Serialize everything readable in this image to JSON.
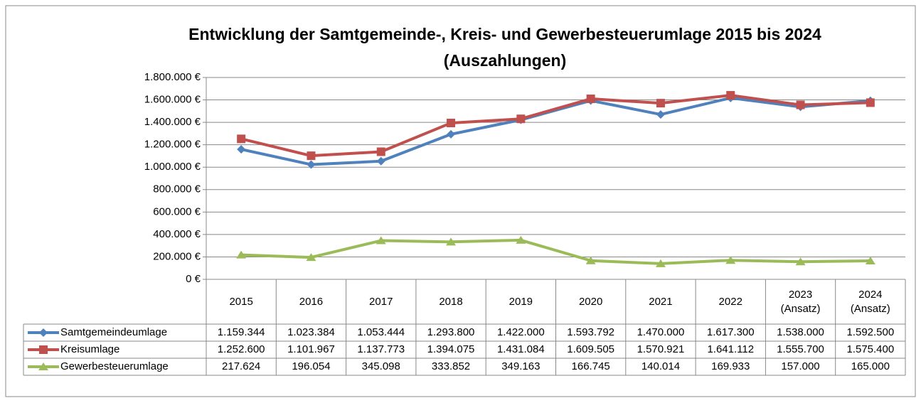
{
  "chart_data": {
    "type": "line",
    "title": "Entwicklung der Samtgemeinde-, Kreis- und Gewerbesteuerumlage 2015 bis 2024\n(Auszahlungen)",
    "categories": [
      "2015",
      "2016",
      "2017",
      "2018",
      "2019",
      "2020",
      "2021",
      "2022",
      "2023\n(Ansatz)",
      "2024\n(Ansatz)"
    ],
    "series": [
      {
        "name": "Samtgemeindeumlage",
        "color": "#4f81bd",
        "marker": "diamond",
        "values": [
          1159344,
          1023384,
          1053444,
          1293800,
          1422000,
          1593792,
          1470000,
          1617300,
          1538000,
          1592500
        ],
        "value_labels": [
          "1.159.344",
          "1.023.384",
          "1.053.444",
          "1.293.800",
          "1.422.000",
          "1.593.792",
          "1.470.000",
          "1.617.300",
          "1.538.000",
          "1.592.500"
        ]
      },
      {
        "name": "Kreisumlage",
        "color": "#c0504d",
        "marker": "square",
        "values": [
          1252600,
          1101967,
          1137773,
          1394075,
          1431084,
          1609505,
          1570921,
          1641112,
          1555700,
          1575400
        ],
        "value_labels": [
          "1.252.600",
          "1.101.967",
          "1.137.773",
          "1.394.075",
          "1.431.084",
          "1.609.505",
          "1.570.921",
          "1.641.112",
          "1.555.700",
          "1.575.400"
        ]
      },
      {
        "name": "Gewerbesteuerumlage",
        "color": "#9bbb59",
        "marker": "triangle",
        "values": [
          217624,
          196054,
          345098,
          333852,
          349163,
          166745,
          140014,
          169933,
          157000,
          165000
        ],
        "value_labels": [
          "217.624",
          "196.054",
          "345.098",
          "333.852",
          "349.163",
          "166.745",
          "140.014",
          "169.933",
          "157.000",
          "165.000"
        ]
      }
    ],
    "ylim": [
      0,
      1800000
    ],
    "yticks": [
      {
        "value": 0,
        "label": "0 €"
      },
      {
        "value": 200000,
        "label": "200.000 €"
      },
      {
        "value": 400000,
        "label": "400.000 €"
      },
      {
        "value": 600000,
        "label": "600.000 €"
      },
      {
        "value": 800000,
        "label": "800.000 €"
      },
      {
        "value": 1000000,
        "label": "1.000.000 €"
      },
      {
        "value": 1200000,
        "label": "1.200.000 €"
      },
      {
        "value": 1400000,
        "label": "1.400.000 €"
      },
      {
        "value": 1600000,
        "label": "1.600.000 €"
      },
      {
        "value": 1800000,
        "label": "1.800.000 €"
      }
    ],
    "grid": true
  }
}
